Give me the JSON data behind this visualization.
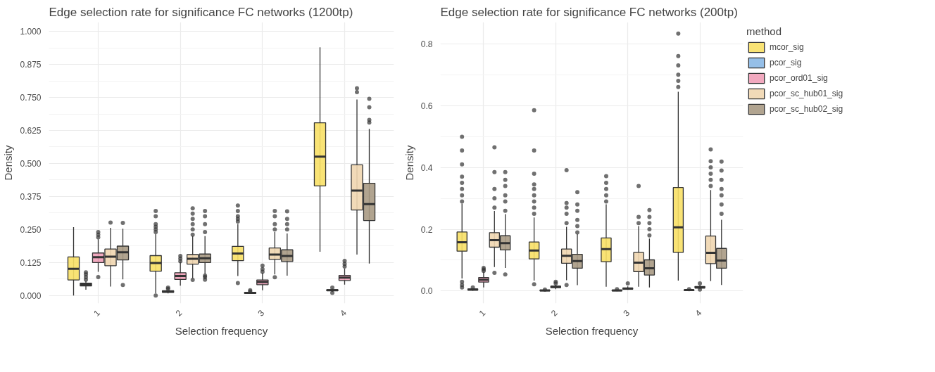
{
  "chart_data": [
    {
      "type": "box",
      "title": "Edge selection rate for significance FC networks (1200tp)",
      "xlabel": "Selection frequency",
      "ylabel": "Density",
      "categories": [
        "1",
        "2",
        "3",
        "4"
      ],
      "ylim": [
        -0.03,
        1.035
      ],
      "yticks": [
        {
          "value": 0,
          "label": "0.000"
        },
        {
          "value": 0.125,
          "label": "0.125"
        },
        {
          "value": 0.25,
          "label": "0.250"
        },
        {
          "value": 0.375,
          "label": "0.375"
        },
        {
          "value": 0.5,
          "label": "0.500"
        },
        {
          "value": 0.625,
          "label": "0.625"
        },
        {
          "value": 0.75,
          "label": "0.750"
        },
        {
          "value": 0.875,
          "label": "0.875"
        },
        {
          "value": 1,
          "label": "1.000"
        }
      ],
      "grid": true,
      "legend": false,
      "series": [
        {
          "color": "#f8e066",
          "boxes": [
            {
              "low": 0,
              "q1": 0.059,
              "median": 0.101,
              "q3": 0.146,
              "high": 0.259
            },
            {
              "low": 0.008,
              "q1": 0.092,
              "median": 0.123,
              "q3": 0.151,
              "high": 0.233,
              "outliers": [
                0,
                0.24,
                0.25,
                0.26,
                0.27,
                0.3,
                0.32
              ]
            },
            {
              "low": 0.074,
              "q1": 0.132,
              "median": 0.159,
              "q3": 0.186,
              "high": 0.271,
              "outliers": [
                0.047,
                0.28,
                0.29,
                0.3,
                0.32,
                0.341
              ]
            },
            {
              "low": 0.166,
              "q1": 0.415,
              "median": 0.526,
              "q3": 0.654,
              "high": 0.94
            }
          ]
        },
        {
          "color": "#8ab8e6",
          "boxes": [
            {
              "low": 0.022,
              "q1": 0.036,
              "median": 0.042,
              "q3": 0.047,
              "high": 0.055,
              "outliers": [
                0.06,
                0.07,
                0.08,
                0.088
              ]
            },
            {
              "low": 0.008,
              "q1": 0.012,
              "median": 0.015,
              "q3": 0.018,
              "high": 0.02,
              "outliers": [
                0.025,
                0.03
              ]
            },
            {
              "low": 0.006,
              "q1": 0.008,
              "median": 0.01,
              "q3": 0.012,
              "high": 0.013,
              "outliers": [
                0.015,
                0.02
              ]
            },
            {
              "low": 0.014,
              "q1": 0.018,
              "median": 0.02,
              "q3": 0.022,
              "high": 0.026,
              "outliers": [
                0.01,
                0.03
              ]
            }
          ]
        },
        {
          "color": "#f0a0b8",
          "boxes": [
            {
              "low": 0.09,
              "q1": 0.125,
              "median": 0.145,
              "q3": 0.161,
              "high": 0.213,
              "outliers": [
                0.07,
                0.22,
                0.23,
                0.24
              ]
            },
            {
              "low": 0.037,
              "q1": 0.061,
              "median": 0.074,
              "q3": 0.086,
              "high": 0.127,
              "outliers": [
                0.13,
                0.14,
                0.15
              ]
            },
            {
              "low": 0.02,
              "q1": 0.041,
              "median": 0.051,
              "q3": 0.059,
              "high": 0.086,
              "outliers": [
                0.09,
                0.1,
                0.113
              ]
            },
            {
              "low": 0.041,
              "q1": 0.057,
              "median": 0.068,
              "q3": 0.076,
              "high": 0.102,
              "outliers": [
                0.11,
                0.12,
                0.131
              ]
            }
          ]
        },
        {
          "color": "#efd6b0",
          "boxes": [
            {
              "low": 0.034,
              "q1": 0.113,
              "median": 0.147,
              "q3": 0.176,
              "high": 0.256,
              "outliers": [
                0.276
              ]
            },
            {
              "low": 0.065,
              "q1": 0.119,
              "median": 0.139,
              "q3": 0.155,
              "high": 0.225,
              "outliers": [
                0.059,
                0.23,
                0.25,
                0.27,
                0.29,
                0.31,
                0.33
              ]
            },
            {
              "low": 0.08,
              "q1": 0.137,
              "median": 0.155,
              "q3": 0.18,
              "high": 0.241,
              "outliers": [
                0.069,
                0.25,
                0.27,
                0.3,
                0.32
              ]
            },
            {
              "low": 0.155,
              "q1": 0.324,
              "median": 0.397,
              "q3": 0.495,
              "high": 0.742,
              "outliers": [
                0.77,
                0.785
              ]
            }
          ]
        },
        {
          "color": "#a99a84",
          "boxes": [
            {
              "low": 0.061,
              "q1": 0.135,
              "median": 0.164,
              "q3": 0.187,
              "high": 0.253,
              "outliers": [
                0.04,
                0.275
              ]
            },
            {
              "low": 0.08,
              "q1": 0.125,
              "median": 0.141,
              "q3": 0.157,
              "high": 0.225,
              "outliers": [
                0.06,
                0.07,
                0.075,
                0.24,
                0.27,
                0.3,
                0.32
              ]
            },
            {
              "low": 0.075,
              "q1": 0.129,
              "median": 0.15,
              "q3": 0.173,
              "high": 0.235,
              "outliers": [
                0.25,
                0.27,
                0.29,
                0.319
              ]
            },
            {
              "low": 0.121,
              "q1": 0.284,
              "median": 0.346,
              "q3": 0.425,
              "high": 0.631,
              "outliers": [
                0.655,
                0.665,
                0.713,
                0.745
              ]
            }
          ]
        }
      ]
    },
    {
      "type": "box",
      "title": "Edge selection rate for significance FC networks (200tp)",
      "xlabel": "Selection frequency",
      "ylabel": "Density",
      "legend_title": "method",
      "categories": [
        "1",
        "2",
        "3",
        "4"
      ],
      "ylim": [
        -0.04,
        0.87
      ],
      "yticks": [
        {
          "value": 0,
          "label": "0.0"
        },
        {
          "value": 0.2,
          "label": "0.2"
        },
        {
          "value": 0.4,
          "label": "0.4"
        },
        {
          "value": 0.6,
          "label": "0.6"
        },
        {
          "value": 0.8,
          "label": "0.8"
        }
      ],
      "grid": true,
      "legend": "right",
      "series": [
        {
          "name": "mcor_sig",
          "color": "#f8e066",
          "boxes": [
            {
              "low": 0.041,
              "q1": 0.129,
              "median": 0.158,
              "q3": 0.191,
              "high": 0.283,
              "outliers": [
                0.012,
                0.02,
                0.03,
                0.29,
                0.31,
                0.33,
                0.35,
                0.37,
                0.41,
                0.455,
                0.499
              ]
            },
            {
              "low": 0.034,
              "q1": 0.104,
              "median": 0.131,
              "q3": 0.159,
              "high": 0.238,
              "outliers": [
                0.022,
                0.25,
                0.27,
                0.29,
                0.31,
                0.33,
                0.345,
                0.38,
                0.455,
                0.585
              ]
            },
            {
              "low": 0.014,
              "q1": 0.095,
              "median": 0.136,
              "q3": 0.172,
              "high": 0.281,
              "outliers": [
                0.29,
                0.31,
                0.33,
                0.35,
                0.372
              ]
            },
            {
              "low": 0.034,
              "q1": 0.125,
              "median": 0.206,
              "q3": 0.335,
              "high": 0.645,
              "outliers": [
                0.66,
                0.68,
                0.7,
                0.73,
                0.76,
                0.833
              ]
            }
          ]
        },
        {
          "name": "pcor_sig",
          "color": "#8ab8e6",
          "boxes": [
            {
              "low": 0.001,
              "q1": 0.003,
              "median": 0.005,
              "q3": 0.007,
              "high": 0.009,
              "outliers": [
                0.012
              ]
            },
            {
              "low": 0,
              "q1": 0.001,
              "median": 0.002,
              "q3": 0.003,
              "high": 0.004,
              "outliers": [
                0.005
              ]
            },
            {
              "low": 0,
              "q1": 0.001,
              "median": 0.002,
              "q3": 0.003,
              "high": 0.004,
              "outliers": [
                0.006
              ]
            },
            {
              "low": 0.001,
              "q1": 0.002,
              "median": 0.003,
              "q3": 0.004,
              "high": 0.005,
              "outliers": [
                0.006
              ]
            }
          ]
        },
        {
          "name": "pcor_ord01_sig",
          "color": "#f0a0b8",
          "boxes": [
            {
              "low": 0.012,
              "q1": 0.029,
              "median": 0.037,
              "q3": 0.044,
              "high": 0.061,
              "outliers": [
                0.065,
                0.07,
                0.075
              ]
            },
            {
              "low": 0.006,
              "q1": 0.011,
              "median": 0.014,
              "q3": 0.016,
              "high": 0.02,
              "outliers": [
                0.025,
                0.03
              ]
            },
            {
              "low": 0.004,
              "q1": 0.006,
              "median": 0.008,
              "q3": 0.01,
              "high": 0.015,
              "outliers": [
                0.025
              ]
            },
            {
              "low": 0.007,
              "q1": 0.01,
              "median": 0.012,
              "q3": 0.015,
              "high": 0.02,
              "outliers": [
                0.005,
                0.025
              ]
            }
          ]
        },
        {
          "name": "pcor_sc_hub01_sig",
          "color": "#efd6b0",
          "boxes": [
            {
              "low": 0.078,
              "q1": 0.142,
              "median": 0.165,
              "q3": 0.189,
              "high": 0.259,
              "outliers": [
                0.059,
                0.27,
                0.3,
                0.33,
                0.385,
                0.465
              ]
            },
            {
              "low": 0.035,
              "q1": 0.09,
              "median": 0.114,
              "q3": 0.136,
              "high": 0.208,
              "outliers": [
                0.02,
                0.22,
                0.25,
                0.27,
                0.285,
                0.391
              ]
            },
            {
              "low": 0.014,
              "q1": 0.063,
              "median": 0.092,
              "q3": 0.125,
              "high": 0.21,
              "outliers": [
                0.22,
                0.24,
                0.34
              ]
            },
            {
              "low": 0.032,
              "q1": 0.089,
              "median": 0.124,
              "q3": 0.178,
              "high": 0.327,
              "outliers": [
                0.34,
                0.36,
                0.38,
                0.4,
                0.42,
                0.458
              ]
            }
          ]
        },
        {
          "name": "pcor_sc_hub02_sig",
          "color": "#a99a84",
          "boxes": [
            {
              "low": 0.075,
              "q1": 0.133,
              "median": 0.155,
              "q3": 0.179,
              "high": 0.249,
              "outliers": [
                0.054,
                0.26,
                0.29,
                0.31,
                0.34,
                0.36,
                0.385
              ]
            },
            {
              "low": 0.019,
              "q1": 0.074,
              "median": 0.097,
              "q3": 0.119,
              "high": 0.184,
              "outliers": [
                0.19,
                0.21,
                0.23,
                0.26,
                0.28,
                0.32
              ]
            },
            {
              "low": 0.012,
              "q1": 0.052,
              "median": 0.074,
              "q3": 0.101,
              "high": 0.17,
              "outliers": [
                0.18,
                0.2,
                0.22,
                0.24,
                0.262
              ]
            },
            {
              "low": 0.02,
              "q1": 0.074,
              "median": 0.099,
              "q3": 0.138,
              "high": 0.231,
              "outliers": [
                0.25,
                0.28,
                0.31,
                0.33,
                0.36,
                0.39,
                0.419
              ]
            }
          ]
        }
      ]
    }
  ]
}
